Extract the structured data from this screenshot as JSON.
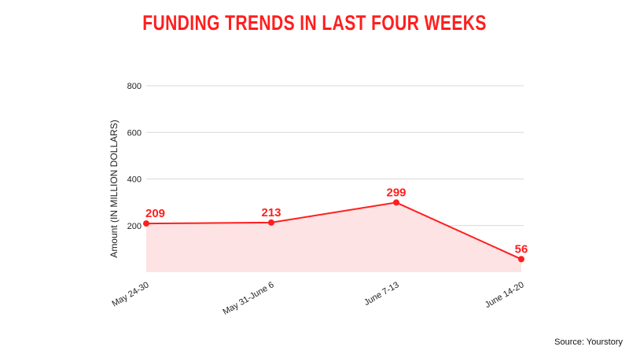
{
  "chart_data": {
    "type": "area",
    "title": "FUNDING TRENDS IN LAST FOUR WEEKS",
    "xlabel": "",
    "ylabel": "Amount (IN MILLION DOLLARS)",
    "categories": [
      "May 24-30",
      "May 31-June 6",
      "June 7-13",
      "June 14-20"
    ],
    "series": [
      {
        "values": [
          209,
          213,
          299,
          56
        ]
      }
    ],
    "data_labels": [
      "209",
      "213",
      "299",
      "56"
    ],
    "ylim": [
      0,
      800
    ],
    "yticks": [
      200,
      400,
      600,
      800
    ],
    "grid": true,
    "colors": {
      "line": "#ff1e1e",
      "fill": "#fde3e3",
      "title": "#ff1e1e",
      "grid": "#d9d9d9"
    }
  },
  "source": "Source: Yourstory"
}
